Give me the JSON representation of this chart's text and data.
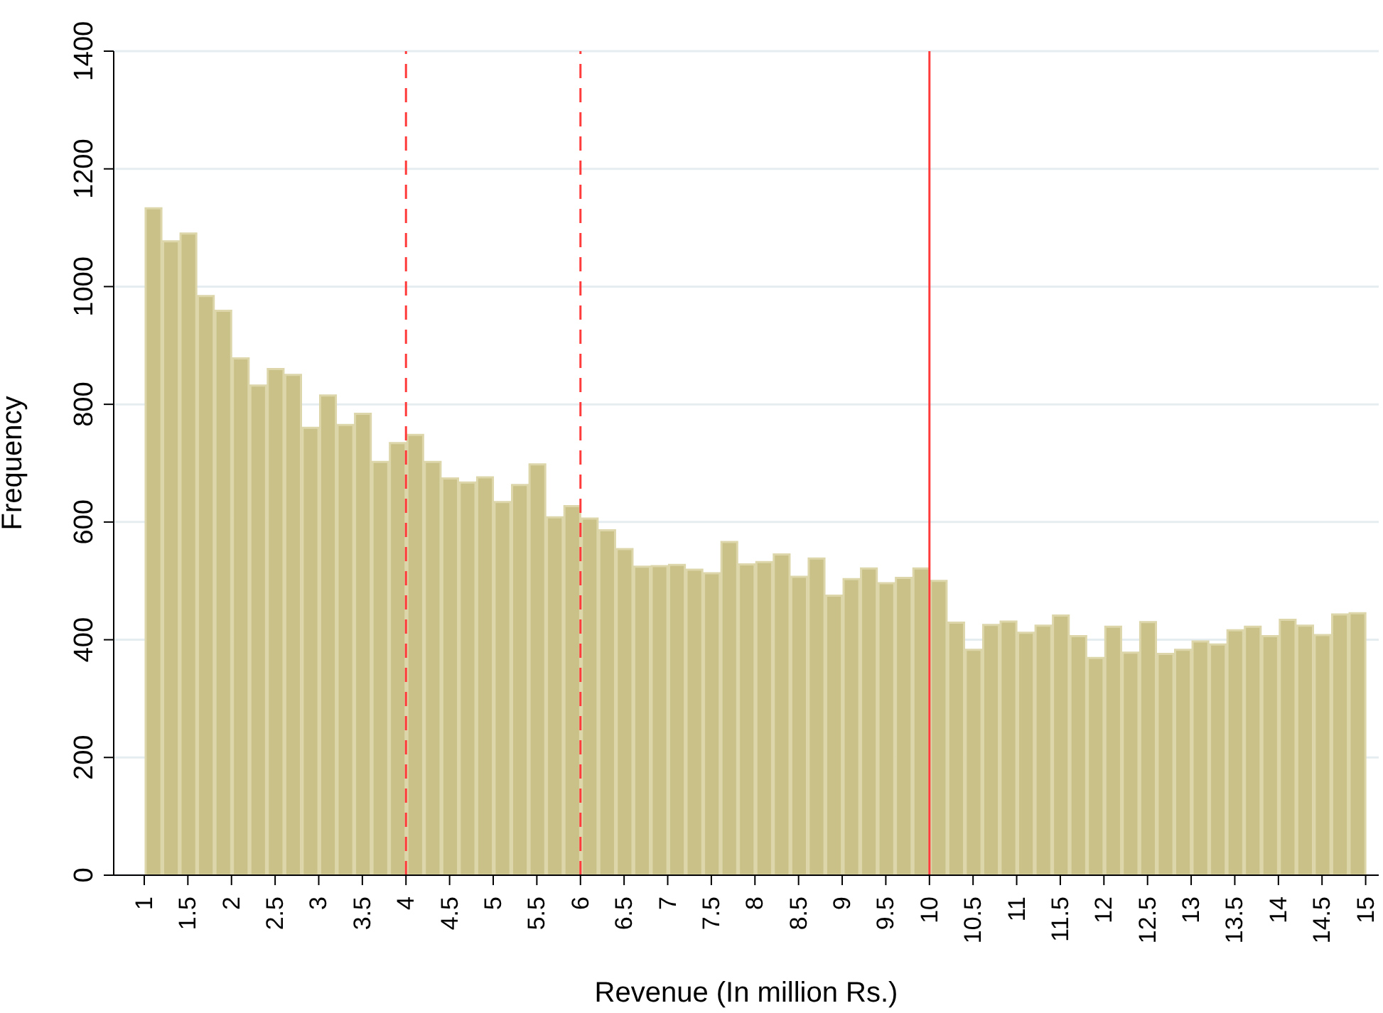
{
  "chart_data": {
    "type": "histogram",
    "xlabel": "Revenue (In million Rs.)",
    "ylabel": "Frequency",
    "bins": [
      1,
      1.2,
      1.4,
      1.6,
      1.8,
      2,
      2.2,
      2.4,
      2.6,
      2.8,
      3,
      3.2,
      3.4,
      3.6,
      3.8,
      4,
      4.2,
      4.4,
      4.6,
      4.8,
      5,
      5.2,
      5.4,
      5.6,
      5.8,
      6,
      6.2,
      6.4,
      6.6,
      6.8,
      7,
      7.2,
      7.4,
      7.6,
      7.8,
      8,
      8.2,
      8.4,
      8.6,
      8.8,
      9,
      9.2,
      9.4,
      9.6,
      9.8,
      10,
      10.2,
      10.4,
      10.6,
      10.8,
      11,
      11.2,
      11.4,
      11.6,
      11.8,
      12,
      12.2,
      12.4,
      12.6,
      12.8,
      13,
      13.2,
      13.4,
      13.6,
      13.8,
      14,
      14.2,
      14.4,
      14.6,
      14.8,
      15
    ],
    "values": [
      1133,
      1077,
      1090,
      984,
      959,
      878,
      832,
      860,
      850,
      760,
      815,
      765,
      784,
      702,
      734,
      748,
      702,
      674,
      667,
      676,
      634,
      663,
      698,
      608,
      627,
      606,
      586,
      554,
      524,
      525,
      527,
      519,
      513,
      566,
      528,
      532,
      545,
      507,
      538,
      475,
      503,
      521,
      496,
      505,
      521,
      500,
      429,
      383,
      425,
      431,
      412,
      424,
      441,
      406,
      369,
      422,
      378,
      430,
      376,
      383,
      397,
      392,
      416,
      422,
      406,
      434,
      424,
      408,
      443,
      445
    ],
    "color": "#c9c187",
    "xlim": [
      0.65,
      15.15
    ],
    "xticks": [
      1,
      1.5,
      2,
      2.5,
      3,
      3.5,
      4,
      4.5,
      5,
      5.5,
      6,
      6.5,
      7,
      7.5,
      8,
      8.5,
      9,
      9.5,
      10,
      10.5,
      11,
      11.5,
      12,
      12.5,
      13,
      13.5,
      14,
      14.5,
      15
    ],
    "ylim": [
      0,
      1400
    ],
    "yticks": [
      0,
      200,
      400,
      600,
      800,
      1000,
      1200,
      1400
    ],
    "grid": "y",
    "ref_lines": [
      {
        "axis": "x",
        "value": 4,
        "color": "#ff3b3b",
        "line_style": "dashed"
      },
      {
        "axis": "x",
        "value": 6,
        "color": "#ff3b3b",
        "line_style": "dashed"
      },
      {
        "axis": "x",
        "value": 10,
        "color": "#ff3b3b",
        "line_style": "solid"
      }
    ]
  }
}
